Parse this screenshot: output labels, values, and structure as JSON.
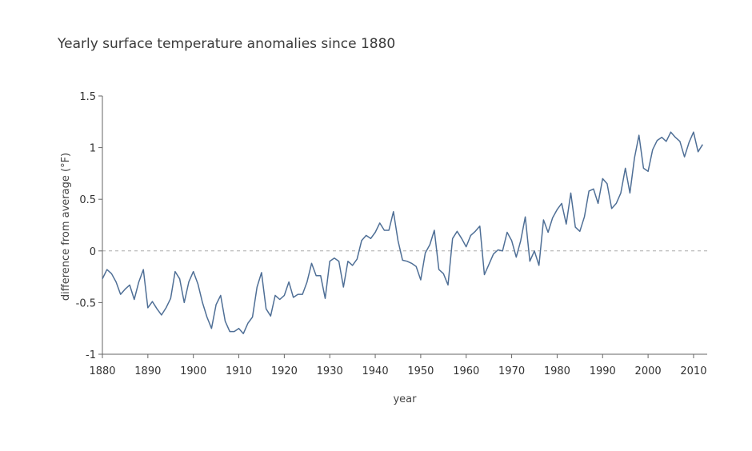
{
  "chart_data": {
    "type": "line",
    "title": "Yearly surface temperature anomalies since 1880",
    "xlabel": "year",
    "ylabel": "difference from average (°F)",
    "xlim": [
      1880,
      2013
    ],
    "ylim": [
      -1,
      1.5
    ],
    "xticks": [
      1880,
      1890,
      1900,
      1910,
      1920,
      1930,
      1940,
      1950,
      1960,
      1970,
      1980,
      1990,
      2000,
      2010
    ],
    "yticks": [
      -1,
      -0.5,
      0,
      0.5,
      1,
      1.5
    ],
    "ytick_labels": [
      "-1",
      "-0.5",
      "0",
      "0.5",
      "1",
      "1.5"
    ],
    "reference_line": 0,
    "grid": false,
    "colors": {
      "line": "#4f6f96",
      "axis": "#666666",
      "reference": "#aaaaaa"
    },
    "series": [
      {
        "x": [
          1880,
          1881,
          1882,
          1883,
          1884,
          1885,
          1886,
          1887,
          1888,
          1889,
          1890,
          1891,
          1892,
          1893,
          1894,
          1895,
          1896,
          1897,
          1898,
          1899,
          1900,
          1901,
          1902,
          1903,
          1904,
          1905,
          1906,
          1907,
          1908,
          1909,
          1910,
          1911,
          1912,
          1913,
          1914,
          1915,
          1916,
          1917,
          1918,
          1919,
          1920,
          1921,
          1922,
          1923,
          1924,
          1925,
          1926,
          1927,
          1928,
          1929,
          1930,
          1931,
          1932,
          1933,
          1934,
          1935,
          1936,
          1937,
          1938,
          1939,
          1940,
          1941,
          1942,
          1943,
          1944,
          1945,
          1946,
          1947,
          1948,
          1949,
          1950,
          1951,
          1952,
          1953,
          1954,
          1955,
          1956,
          1957,
          1958,
          1959,
          1960,
          1961,
          1962,
          1963,
          1964,
          1965,
          1966,
          1967,
          1968,
          1969,
          1970,
          1971,
          1972,
          1973,
          1974,
          1975,
          1976,
          1977,
          1978,
          1979,
          1980,
          1981,
          1982,
          1983,
          1984,
          1985,
          1986,
          1987,
          1988,
          1989,
          1990,
          1991,
          1992,
          1993,
          1994,
          1995,
          1996,
          1997,
          1998,
          1999,
          2000,
          2001,
          2002,
          2003,
          2004,
          2005,
          2006,
          2007,
          2008,
          2009,
          2010,
          2011,
          2012
        ],
        "y": [
          -0.27,
          -0.18,
          -0.22,
          -0.3,
          -0.42,
          -0.37,
          -0.33,
          -0.47,
          -0.3,
          -0.18,
          -0.55,
          -0.49,
          -0.56,
          -0.62,
          -0.55,
          -0.46,
          -0.2,
          -0.27,
          -0.5,
          -0.3,
          -0.2,
          -0.32,
          -0.5,
          -0.64,
          -0.75,
          -0.52,
          -0.43,
          -0.68,
          -0.78,
          -0.78,
          -0.75,
          -0.8,
          -0.7,
          -0.64,
          -0.35,
          -0.21,
          -0.56,
          -0.63,
          -0.43,
          -0.47,
          -0.43,
          -0.3,
          -0.45,
          -0.42,
          -0.42,
          -0.3,
          -0.12,
          -0.24,
          -0.24,
          -0.46,
          -0.1,
          -0.07,
          -0.1,
          -0.35,
          -0.1,
          -0.14,
          -0.08,
          0.1,
          0.15,
          0.12,
          0.18,
          0.27,
          0.2,
          0.2,
          0.38,
          0.1,
          -0.09,
          -0.1,
          -0.12,
          -0.15,
          -0.28,
          -0.02,
          0.06,
          0.2,
          -0.18,
          -0.22,
          -0.33,
          0.12,
          0.19,
          0.12,
          0.04,
          0.15,
          0.19,
          0.24,
          -0.23,
          -0.13,
          -0.03,
          0.01,
          0.0,
          0.18,
          0.1,
          -0.06,
          0.1,
          0.33,
          -0.1,
          0.0,
          -0.14,
          0.3,
          0.18,
          0.32,
          0.4,
          0.46,
          0.26,
          0.56,
          0.23,
          0.19,
          0.33,
          0.58,
          0.6,
          0.46,
          0.7,
          0.65,
          0.41,
          0.46,
          0.56,
          0.8,
          0.56,
          0.9,
          1.12,
          0.8,
          0.77,
          0.98,
          1.07,
          1.1,
          1.06,
          1.15,
          1.1,
          1.06,
          0.91,
          1.05,
          1.15,
          0.96,
          1.03
        ]
      }
    ]
  }
}
